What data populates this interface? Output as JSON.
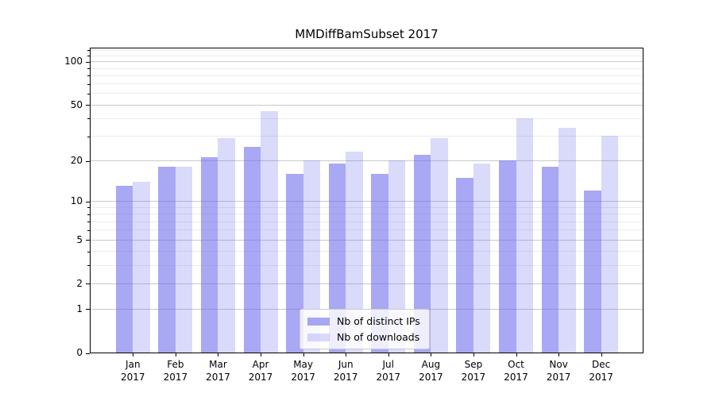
{
  "title": "MMDiffBamSubset 2017",
  "chart_data": {
    "type": "bar",
    "title": "MMDiffBamSubset 2017",
    "categories": [
      "Jan 2017",
      "Feb 2017",
      "Mar 2017",
      "Apr 2017",
      "May 2017",
      "Jun 2017",
      "Jul 2017",
      "Aug 2017",
      "Sep 2017",
      "Oct 2017",
      "Nov 2017",
      "Dec 2017"
    ],
    "months": [
      "Jan",
      "Feb",
      "Mar",
      "Apr",
      "May",
      "Jun",
      "Jul",
      "Aug",
      "Sep",
      "Oct",
      "Nov",
      "Dec"
    ],
    "year": "2017",
    "series": [
      {
        "name": "Nb of distinct IPs",
        "color": "rgba(102,102,238,0.57)",
        "color_hex": "#a6a6f2",
        "values": [
          13,
          18,
          21,
          25,
          16,
          19,
          16,
          22,
          15,
          20,
          18,
          12
        ]
      },
      {
        "name": "Nb of downloads",
        "color": "rgba(102,102,238,0.24)",
        "color_hex": "#dadaf7",
        "values": [
          14,
          18,
          29,
          45,
          20,
          23,
          20,
          29,
          19,
          40,
          34,
          30
        ]
      }
    ],
    "xlabel": "",
    "ylabel": "",
    "yscale": "log1p",
    "ylim": [
      0,
      126
    ],
    "yticks": [
      0,
      1,
      2,
      5,
      10,
      20,
      50,
      100
    ],
    "yticks_minor": [
      3,
      4,
      6,
      7,
      8,
      9,
      30,
      40,
      60,
      70,
      80,
      90,
      110,
      120
    ],
    "grid": "horizontal",
    "legend_position": "lower center",
    "colors": {
      "grid_major": "#c9c9c9",
      "grid_minor": "#ececec",
      "axis": "#000000",
      "legend_border": "#cccccc",
      "legend_bg": "rgba(255,255,255,0.8)"
    }
  }
}
